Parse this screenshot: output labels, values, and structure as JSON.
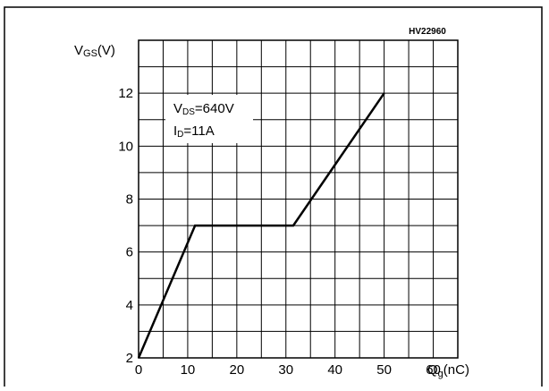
{
  "chart_data": {
    "type": "line",
    "code": "HV22960",
    "ylabel": {
      "main": "V",
      "sub": "GS",
      "unit": "(V)"
    },
    "xlabel": {
      "main": "Q",
      "sub": "g",
      "unit": "(nC)"
    },
    "xlim": [
      0,
      65
    ],
    "ylim": [
      2,
      14
    ],
    "x_ticks": [
      0,
      10,
      20,
      30,
      40,
      50,
      60
    ],
    "y_ticks": [
      2,
      4,
      6,
      8,
      10,
      12
    ],
    "grid": true,
    "series": [
      {
        "x": [
          0,
          11.5,
          31.5,
          50
        ],
        "y": [
          2,
          7,
          7,
          12
        ]
      }
    ],
    "annotations": [
      {
        "main": "V",
        "sub": "DS",
        "rest": "=640V"
      },
      {
        "main": "I",
        "sub": "D",
        "rest": "=11A"
      }
    ]
  }
}
